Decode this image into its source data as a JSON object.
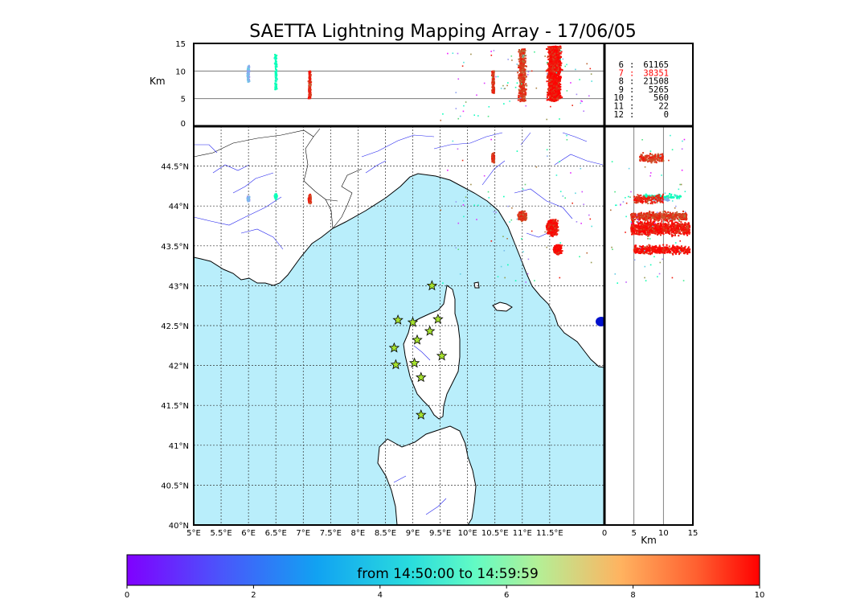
{
  "title": "SAETTA Lightning Mapping Array - 17/06/05",
  "map": {
    "lon_range": [
      5,
      12.5
    ],
    "lat_range": [
      40,
      45
    ],
    "lon_ticks": [
      "5°E",
      "5.5°E",
      "6°E",
      "6.5°E",
      "7°E",
      "7.5°E",
      "8°E",
      "8.5°E",
      "9°E",
      "9.5°E",
      "10°E",
      "10.5°E",
      "11°E",
      "11.5°E"
    ],
    "lat_ticks": [
      "40°N",
      "40.5°N",
      "41°N",
      "41.5°N",
      "42°N",
      "42.5°N",
      "43°N",
      "43.5°N",
      "44°N",
      "44.5°N"
    ],
    "colors": {
      "sea": "#b9eefb",
      "land": "#ffffff",
      "coast": "#000000",
      "rivers": "#2222ee",
      "grid": "#333333"
    },
    "stations": [
      {
        "lon": 9.35,
        "lat": 43.0
      },
      {
        "lon": 8.73,
        "lat": 42.57
      },
      {
        "lon": 9.0,
        "lat": 42.54
      },
      {
        "lon": 9.46,
        "lat": 42.58
      },
      {
        "lon": 9.08,
        "lat": 42.32
      },
      {
        "lon": 9.31,
        "lat": 42.43
      },
      {
        "lon": 8.66,
        "lat": 42.22
      },
      {
        "lon": 8.69,
        "lat": 42.01
      },
      {
        "lon": 9.03,
        "lat": 42.03
      },
      {
        "lon": 9.53,
        "lat": 42.12
      },
      {
        "lon": 9.15,
        "lat": 41.85
      },
      {
        "lon": 9.15,
        "lat": 41.38
      }
    ],
    "station_color": "#a6e22e"
  },
  "altitude_panel": {
    "ylabel": "Km",
    "y_ticks": [
      "0",
      "5",
      "10",
      "15"
    ],
    "y_range": [
      0,
      15
    ],
    "reference_lines": [
      5,
      10
    ]
  },
  "side_panel": {
    "xlabel": "Km",
    "x_ticks": [
      "0",
      "5",
      "10",
      "15"
    ],
    "x_range": [
      0,
      15
    ],
    "reference_lines": [
      5,
      10
    ]
  },
  "stats": [
    {
      "stations": "6",
      "count": "61165",
      "color": "#000000"
    },
    {
      "stations": "7",
      "count": "38351",
      "color": "#ff0000"
    },
    {
      "stations": "8",
      "count": "21508",
      "color": "#000000"
    },
    {
      "stations": "9",
      "count": "5265",
      "color": "#000000"
    },
    {
      "stations": "10",
      "count": "560",
      "color": "#000000"
    },
    {
      "stations": "11",
      "count": "22",
      "color": "#000000"
    },
    {
      "stations": "12",
      "count": "0",
      "color": "#000000"
    }
  ],
  "colorbar": {
    "label": "from 14:50:00 to 14:59:59",
    "ticks": [
      "0",
      "2",
      "4",
      "6",
      "8",
      "10"
    ],
    "range": [
      0,
      10
    ],
    "colormap": "rainbow"
  },
  "lightning_clusters": [
    {
      "lon": 6.0,
      "lat": 44.09,
      "alt_min": 8,
      "alt_max": 11,
      "time": 2.2,
      "density": "low"
    },
    {
      "lon": 6.5,
      "lat": 44.12,
      "alt_min": 6.5,
      "alt_max": 13,
      "time": 4.5,
      "density": "low"
    },
    {
      "lon": 7.12,
      "lat": 44.08,
      "alt_min": 5,
      "alt_max": 10,
      "time": 9.3,
      "density": "medium"
    },
    {
      "lon": 10.47,
      "lat": 44.6,
      "alt_min": 6,
      "alt_max": 10,
      "time": 9.0,
      "density": "medium"
    },
    {
      "lon": 11.0,
      "lat": 43.87,
      "alt_min": 4.5,
      "alt_max": 14,
      "time": 9.0,
      "density": "high"
    },
    {
      "lon": 11.55,
      "lat": 43.72,
      "alt_min": 4.5,
      "alt_max": 14.5,
      "time": 9.5,
      "density": "very-high"
    },
    {
      "lon": 11.65,
      "lat": 43.45,
      "alt_min": 5,
      "alt_max": 14.5,
      "time": 9.6,
      "density": "high"
    }
  ]
}
